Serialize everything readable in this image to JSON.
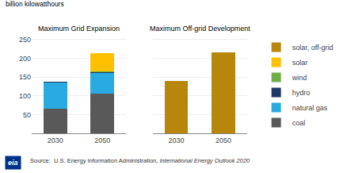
{
  "chart_data": [
    {
      "type": "bar",
      "title": "Maximum Grid Expansion",
      "y_label": "billion kilowatthours",
      "categories": [
        "2030",
        "2050"
      ],
      "series": [
        {
          "name": "coal",
          "color": "#595959",
          "values": [
            65,
            105
          ]
        },
        {
          "name": "natural gas",
          "color": "#29abe2",
          "values": [
            70,
            55
          ]
        },
        {
          "name": "hydro",
          "color": "#1f3864",
          "values": [
            2,
            2
          ]
        },
        {
          "name": "wind",
          "color": "#70ad47",
          "values": [
            1,
            2
          ]
        },
        {
          "name": "solar",
          "color": "#ffc000",
          "values": [
            0,
            50
          ]
        },
        {
          "name": "solar, off-grid",
          "color": "#b8860b",
          "values": [
            0,
            0
          ]
        }
      ],
      "stacked": true,
      "ylim": [
        0,
        260
      ],
      "yticks": [
        50,
        100,
        150,
        200,
        250
      ],
      "grid": true,
      "legend": "right",
      "annotations": [
        "Source:  U.S. Energy Information Administration, ",
        "International Energy Outlook 2020",
        "eia"
      ]
    },
    {
      "type": "bar",
      "title": "Maximum Off-grid Development",
      "categories": [
        "2030",
        "2050"
      ],
      "series": [
        {
          "name": "coal",
          "color": "#595959",
          "values": [
            0,
            0
          ]
        },
        {
          "name": "natural gas",
          "color": "#29abe2",
          "values": [
            0,
            0
          ]
        },
        {
          "name": "hydro",
          "color": "#1f3864",
          "values": [
            0,
            0
          ]
        },
        {
          "name": "wind",
          "color": "#70ad47",
          "values": [
            0,
            0
          ]
        },
        {
          "name": "solar",
          "color": "#ffc000",
          "values": [
            0,
            0
          ]
        },
        {
          "name": "solar, off-grid",
          "color": "#b8860b",
          "values": [
            140,
            215
          ]
        }
      ],
      "stacked": true,
      "ylim": [
        0,
        260
      ],
      "yticks": [
        50,
        100,
        150,
        200,
        250
      ],
      "grid": true,
      "tick_labels": "x"
    }
  ]
}
